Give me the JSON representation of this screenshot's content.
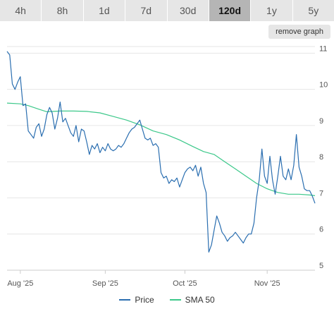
{
  "tabs": [
    {
      "label": "4h",
      "active": false
    },
    {
      "label": "8h",
      "active": false
    },
    {
      "label": "1d",
      "active": false
    },
    {
      "label": "7d",
      "active": false
    },
    {
      "label": "30d",
      "active": false
    },
    {
      "label": "120d",
      "active": true
    },
    {
      "label": "1y",
      "active": false
    },
    {
      "label": "5y",
      "active": false
    }
  ],
  "remove_button": "remove graph",
  "colors": {
    "price": "#2a6eb0",
    "sma": "#3cc88a",
    "grid": "#e6e6e6",
    "active_tab": "#b5b5b5"
  },
  "chart_data": {
    "type": "line",
    "ylim": [
      5,
      11.3
    ],
    "y_ticks": [
      5,
      6,
      7,
      8,
      9,
      10,
      11
    ],
    "x_ticks": [
      {
        "label": "Aug '25",
        "day": 5
      },
      {
        "label": "Sep '25",
        "day": 37
      },
      {
        "label": "Oct '25",
        "day": 67
      },
      {
        "label": "Nov '25",
        "day": 98
      }
    ],
    "x_domain": [
      0,
      116
    ],
    "grid": true,
    "legend_position": "bottom",
    "series": [
      {
        "name": "Price",
        "color": "#2a6eb0",
        "x": [
          0,
          1,
          2,
          3,
          4,
          5,
          6,
          7,
          8,
          9,
          10,
          11,
          12,
          13,
          14,
          15,
          16,
          17,
          18,
          19,
          20,
          21,
          22,
          23,
          24,
          25,
          26,
          27,
          28,
          29,
          30,
          31,
          32,
          33,
          34,
          35,
          36,
          37,
          38,
          39,
          40,
          41,
          42,
          43,
          44,
          45,
          46,
          47,
          48,
          49,
          50,
          51,
          52,
          53,
          54,
          55,
          56,
          57,
          58,
          59,
          60,
          61,
          62,
          63,
          64,
          65,
          66,
          67,
          68,
          69,
          70,
          71,
          72,
          73,
          74,
          75,
          76,
          77,
          78,
          79,
          80,
          81,
          82,
          83,
          84,
          85,
          86,
          87,
          88,
          89,
          90,
          91,
          92,
          93,
          94,
          95,
          96,
          97,
          98,
          99,
          100,
          101,
          102,
          103,
          104,
          105,
          106,
          107,
          108,
          109,
          110,
          111,
          112,
          113,
          114,
          115,
          116
        ],
        "y": [
          11.05,
          10.95,
          10.15,
          10.0,
          10.2,
          10.35,
          9.55,
          9.6,
          8.85,
          8.75,
          8.65,
          8.95,
          9.05,
          8.7,
          8.9,
          9.3,
          9.5,
          9.35,
          8.9,
          9.2,
          9.65,
          9.1,
          9.2,
          9.0,
          8.8,
          8.7,
          9.0,
          8.55,
          8.9,
          8.85,
          8.55,
          8.2,
          8.45,
          8.35,
          8.5,
          8.25,
          8.4,
          8.3,
          8.5,
          8.35,
          8.3,
          8.35,
          8.45,
          8.4,
          8.5,
          8.65,
          8.8,
          8.9,
          8.95,
          9.05,
          9.15,
          8.9,
          8.65,
          8.6,
          8.65,
          8.45,
          8.5,
          8.4,
          7.7,
          7.55,
          7.6,
          7.4,
          7.5,
          7.45,
          7.55,
          7.3,
          7.5,
          7.7,
          7.8,
          7.85,
          7.75,
          7.9,
          7.6,
          7.85,
          7.4,
          7.15,
          5.5,
          5.7,
          6.1,
          6.5,
          6.3,
          6.05,
          5.95,
          5.8,
          5.9,
          5.95,
          6.05,
          5.95,
          5.85,
          5.75,
          5.9,
          6.0,
          6.0,
          6.3,
          7.0,
          7.5,
          8.35,
          7.6,
          7.4,
          8.15,
          7.5,
          7.1,
          7.6,
          8.15,
          7.6,
          7.5,
          7.8,
          7.5,
          7.9,
          8.75,
          7.85,
          7.6,
          7.25,
          7.2,
          7.2,
          7.05,
          6.85
        ]
      },
      {
        "name": "SMA 50",
        "color": "#3cc88a",
        "x": [
          0,
          5,
          8,
          12,
          15,
          20,
          25,
          30,
          35,
          40,
          45,
          50,
          55,
          60,
          65,
          70,
          74,
          78,
          82,
          86,
          90,
          94,
          98,
          102,
          106,
          110,
          114,
          116
        ],
        "y": [
          9.62,
          9.6,
          9.55,
          9.45,
          9.38,
          9.4,
          9.4,
          9.39,
          9.35,
          9.25,
          9.15,
          9.02,
          8.85,
          8.75,
          8.6,
          8.42,
          8.28,
          8.2,
          8.0,
          7.8,
          7.6,
          7.4,
          7.25,
          7.15,
          7.1,
          7.1,
          7.08,
          7.06
        ]
      }
    ]
  }
}
